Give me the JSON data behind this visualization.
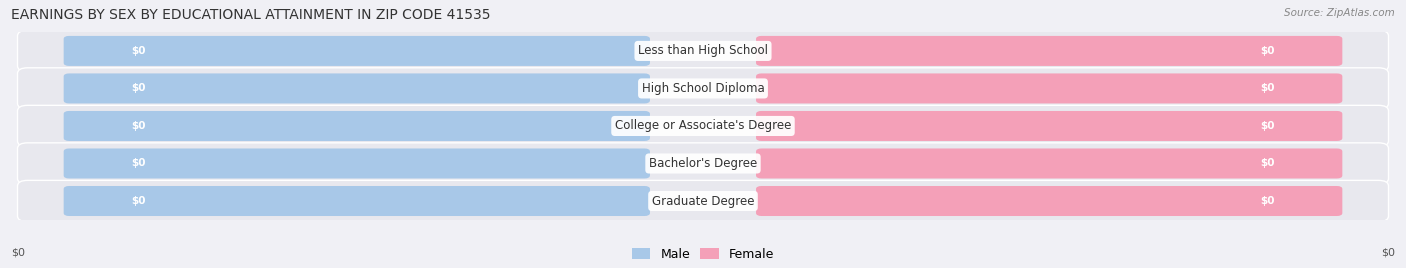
{
  "title": "EARNINGS BY SEX BY EDUCATIONAL ATTAINMENT IN ZIP CODE 41535",
  "source": "Source: ZipAtlas.com",
  "categories": [
    "Less than High School",
    "High School Diploma",
    "College or Associate's Degree",
    "Bachelor's Degree",
    "Graduate Degree"
  ],
  "male_values": [
    0,
    0,
    0,
    0,
    0
  ],
  "female_values": [
    0,
    0,
    0,
    0,
    0
  ],
  "male_color": "#a8c8e8",
  "female_color": "#f4a0b8",
  "male_label": "Male",
  "female_label": "Female",
  "bar_value_label": "$0",
  "xlabel_left": "$0",
  "xlabel_right": "$0",
  "title_fontsize": 10,
  "source_fontsize": 7.5,
  "category_fontsize": 8.5,
  "val_fontsize": 7.5,
  "legend_fontsize": 9,
  "row_bg_color": "#e8e8ee",
  "fig_bg_color": "#f0f0f5"
}
